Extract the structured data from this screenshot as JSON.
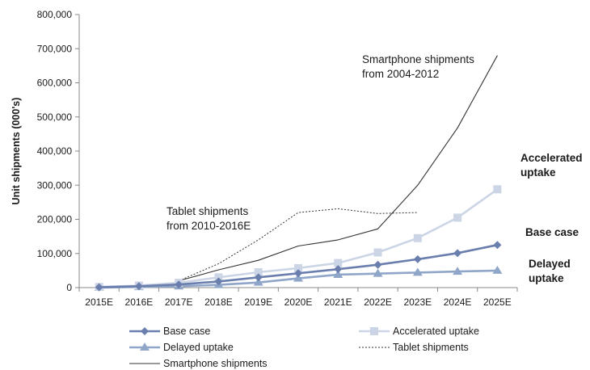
{
  "chart_data": {
    "type": "line",
    "categories": [
      "2015E",
      "2016E",
      "2017E",
      "2018E",
      "2019E",
      "2020E",
      "2021E",
      "2022E",
      "2023E",
      "2024E",
      "2025E"
    ],
    "ylabel": "Unit shipments (000's)",
    "ylim": [
      0,
      800000
    ],
    "yticks": [
      0,
      100000,
      200000,
      300000,
      400000,
      500000,
      600000,
      700000,
      800000
    ],
    "ytick_labels": [
      "0",
      "100,000",
      "200,000",
      "300,000",
      "400,000",
      "500,000",
      "600,000",
      "700,000",
      "800,000"
    ],
    "grid": false,
    "legend_position": "bottom",
    "series": [
      {
        "name": "Base case",
        "color": "#6a7fae",
        "marker": "diamond",
        "line": "solid-thick",
        "values": [
          1000,
          4000,
          9000,
          18000,
          30000,
          42000,
          54000,
          67000,
          83000,
          101000,
          125000
        ]
      },
      {
        "name": "Accelerated uptake",
        "color": "#ccd5e6",
        "marker": "square",
        "line": "solid-thick",
        "values": [
          2000,
          6000,
          14000,
          30000,
          45000,
          57000,
          72000,
          103000,
          145000,
          205000,
          288000
        ]
      },
      {
        "name": "Delayed uptake",
        "color": "#8fa6c9",
        "marker": "triangle",
        "line": "solid-thick",
        "values": [
          0,
          2000,
          4000,
          8000,
          15000,
          27000,
          38000,
          41000,
          44000,
          47000,
          50000
        ]
      },
      {
        "name": "Tablet shipments",
        "color": "#333333",
        "marker": "none",
        "line": "dotted",
        "values": [
          null,
          null,
          20000,
          70000,
          140000,
          220000,
          231000,
          217000,
          220000,
          null,
          null
        ]
      },
      {
        "name": "Smartphone shipments",
        "color": "#333333",
        "marker": "none",
        "line": "solid-thin",
        "values": [
          null,
          null,
          20000,
          52000,
          80000,
          122000,
          140000,
          172000,
          300000,
          468000,
          680000
        ]
      }
    ],
    "annotations": {
      "smartphone": [
        "Smartphone shipments",
        "from 2004-2012"
      ],
      "tablet": [
        "Tablet shipments",
        "from 2010-2016E"
      ],
      "accelerated": [
        "Accelerated",
        "uptake"
      ],
      "base": [
        "Base case"
      ],
      "delayed": [
        "Delayed",
        "uptake"
      ]
    }
  }
}
